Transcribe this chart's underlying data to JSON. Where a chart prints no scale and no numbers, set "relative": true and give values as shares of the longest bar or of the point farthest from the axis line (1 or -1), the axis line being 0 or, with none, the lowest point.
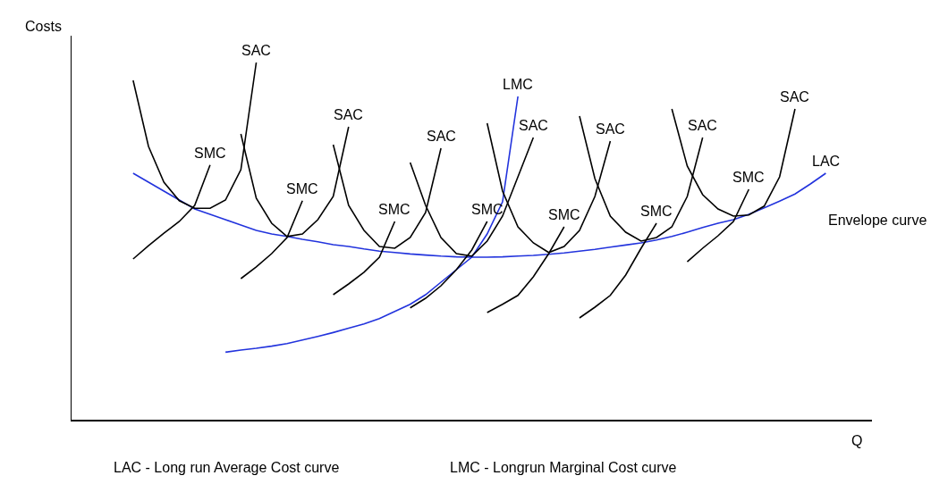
{
  "chart_data": {
    "type": "line",
    "relative": true,
    "xlabel": "Q",
    "ylabel": "Costs",
    "grid": false,
    "legend": false,
    "marker": "none",
    "line_style": "solid",
    "categories": [
      null,
      null,
      null,
      null,
      null,
      null,
      null,
      null,
      null,
      null,
      null,
      null,
      null,
      null,
      null,
      null,
      null,
      null,
      null,
      null,
      null,
      null,
      null,
      null,
      null,
      null,
      null,
      null,
      null,
      null,
      null,
      null,
      null,
      null,
      null,
      null,
      null,
      null,
      null,
      null,
      null,
      null,
      null,
      null,
      null,
      null,
      null,
      null
    ],
    "series": [
      {
        "name": "LAC",
        "color": "#2233dd",
        "values": [
          null,
          0.69,
          0.665,
          0.64,
          0.615,
          0.59,
          0.575,
          0.56,
          0.545,
          0.53,
          0.52,
          0.513,
          0.505,
          0.498,
          0.49,
          0.485,
          0.478,
          0.472,
          0.468,
          0.464,
          0.461,
          0.458,
          0.456,
          0.455,
          0.455,
          0.456,
          0.458,
          0.46,
          0.463,
          0.467,
          0.472,
          0.477,
          0.483,
          0.489,
          0.495,
          0.503,
          0.513,
          0.525,
          0.538,
          0.55,
          0.56,
          0.575,
          0.593,
          0.612,
          0.632,
          0.66,
          0.69,
          null
        ]
      },
      {
        "name": "LMC",
        "color": "#2233dd",
        "values": [
          null,
          null,
          null,
          null,
          null,
          null,
          null,
          0.189,
          0.195,
          0.2,
          0.206,
          0.213,
          0.223,
          0.233,
          0.244,
          0.256,
          0.268,
          0.283,
          0.303,
          0.323,
          0.35,
          0.385,
          0.42,
          0.455,
          0.52,
          0.61,
          0.905,
          null,
          null,
          null,
          null,
          null,
          null,
          null,
          null,
          null,
          null,
          null,
          null,
          null,
          null,
          null,
          null,
          null,
          null,
          null,
          null,
          null
        ]
      },
      {
        "name": "SAC",
        "color": "#000000",
        "values": [
          null,
          0.95,
          0.765,
          0.665,
          0.613,
          0.592,
          0.592,
          0.615,
          0.7,
          1,
          null,
          null,
          null,
          null,
          null,
          null,
          null,
          null,
          null,
          null,
          null,
          null,
          null,
          null,
          null,
          null,
          null,
          null,
          null,
          null,
          null,
          null,
          null,
          null,
          null,
          null,
          null,
          null,
          null,
          null,
          null,
          null,
          null,
          null,
          null,
          null,
          null,
          null
        ]
      },
      {
        "name": "SAC",
        "color": "#000000",
        "values": [
          null,
          null,
          null,
          null,
          null,
          null,
          null,
          null,
          0.8,
          0.62,
          0.55,
          0.513,
          0.52,
          0.56,
          0.625,
          0.82,
          null,
          null,
          null,
          null,
          null,
          null,
          null,
          null,
          null,
          null,
          null,
          null,
          null,
          null,
          null,
          null,
          null,
          null,
          null,
          null,
          null,
          null,
          null,
          null,
          null,
          null,
          null,
          null,
          null,
          null,
          null,
          null
        ]
      },
      {
        "name": "SAC",
        "color": "#000000",
        "values": [
          null,
          null,
          null,
          null,
          null,
          null,
          null,
          null,
          null,
          null,
          null,
          null,
          null,
          null,
          0.77,
          0.6,
          0.53,
          0.485,
          0.48,
          0.51,
          0.58,
          0.76,
          null,
          null,
          null,
          null,
          null,
          null,
          null,
          null,
          null,
          null,
          null,
          null,
          null,
          null,
          null,
          null,
          null,
          null,
          null,
          null,
          null,
          null,
          null,
          null,
          null,
          null
        ]
      },
      {
        "name": "SAC",
        "color": "#000000",
        "values": [
          null,
          null,
          null,
          null,
          null,
          null,
          null,
          null,
          null,
          null,
          null,
          null,
          null,
          null,
          null,
          null,
          null,
          null,
          null,
          0.72,
          0.6,
          0.51,
          0.465,
          0.458,
          0.5,
          0.57,
          0.68,
          0.79,
          null,
          null,
          null,
          null,
          null,
          null,
          null,
          null,
          null,
          null,
          null,
          null,
          null,
          null,
          null,
          null,
          null,
          null,
          null,
          null
        ]
      },
      {
        "name": "SAC",
        "color": "#000000",
        "values": [
          null,
          null,
          null,
          null,
          null,
          null,
          null,
          null,
          null,
          null,
          null,
          null,
          null,
          null,
          null,
          null,
          null,
          null,
          null,
          null,
          null,
          null,
          null,
          null,
          0.83,
          0.64,
          0.54,
          0.495,
          0.468,
          0.485,
          0.53,
          0.625,
          0.78,
          null,
          null,
          null,
          null,
          null,
          null,
          null,
          null,
          null,
          null,
          null,
          null,
          null,
          null,
          null
        ]
      },
      {
        "name": "SAC",
        "color": "#000000",
        "values": [
          null,
          null,
          null,
          null,
          null,
          null,
          null,
          null,
          null,
          null,
          null,
          null,
          null,
          null,
          null,
          null,
          null,
          null,
          null,
          null,
          null,
          null,
          null,
          null,
          null,
          null,
          null,
          null,
          null,
          null,
          0.85,
          0.675,
          0.57,
          0.525,
          0.5,
          0.51,
          0.54,
          0.625,
          0.79,
          null,
          null,
          null,
          null,
          null,
          null,
          null,
          null,
          null
        ]
      },
      {
        "name": "SAC",
        "color": "#000000",
        "values": [
          null,
          null,
          null,
          null,
          null,
          null,
          null,
          null,
          null,
          null,
          null,
          null,
          null,
          null,
          null,
          null,
          null,
          null,
          null,
          null,
          null,
          null,
          null,
          null,
          null,
          null,
          null,
          null,
          null,
          null,
          null,
          null,
          null,
          null,
          null,
          null,
          0.87,
          0.71,
          0.63,
          0.59,
          0.57,
          0.573,
          0.598,
          0.68,
          0.87,
          null,
          null,
          null
        ]
      },
      {
        "name": "SMC",
        "color": "#000000",
        "values": [
          null,
          0.45,
          0.487,
          0.522,
          0.555,
          0.6,
          0.713,
          null,
          null,
          null,
          null,
          null,
          null,
          null,
          null,
          null,
          null,
          null,
          null,
          null,
          null,
          null,
          null,
          null,
          null,
          null,
          null,
          null,
          null,
          null,
          null,
          null,
          null,
          null,
          null,
          null,
          null,
          null,
          null,
          null,
          null,
          null,
          null,
          null,
          null,
          null,
          null,
          null
        ]
      },
      {
        "name": "SMC",
        "color": "#000000",
        "values": [
          null,
          null,
          null,
          null,
          null,
          null,
          null,
          null,
          0.395,
          0.428,
          0.465,
          0.51,
          0.613,
          null,
          null,
          null,
          null,
          null,
          null,
          null,
          null,
          null,
          null,
          null,
          null,
          null,
          null,
          null,
          null,
          null,
          null,
          null,
          null,
          null,
          null,
          null,
          null,
          null,
          null,
          null,
          null,
          null,
          null,
          null,
          null,
          null,
          null,
          null
        ]
      },
      {
        "name": "SMC",
        "color": "#000000",
        "values": [
          null,
          null,
          null,
          null,
          null,
          null,
          null,
          null,
          null,
          null,
          null,
          null,
          null,
          null,
          0.35,
          0.38,
          0.413,
          0.455,
          0.555,
          null,
          null,
          null,
          null,
          null,
          null,
          null,
          null,
          null,
          null,
          null,
          null,
          null,
          null,
          null,
          null,
          null,
          null,
          null,
          null,
          null,
          null,
          null,
          null,
          null,
          null,
          null,
          null,
          null
        ]
      },
      {
        "name": "SMC",
        "color": "#000000",
        "values": [
          null,
          null,
          null,
          null,
          null,
          null,
          null,
          null,
          null,
          null,
          null,
          null,
          null,
          null,
          null,
          null,
          null,
          null,
          null,
          0.313,
          0.34,
          0.375,
          0.42,
          0.475,
          0.555,
          null,
          null,
          null,
          null,
          null,
          null,
          null,
          null,
          null,
          null,
          null,
          null,
          null,
          null,
          null,
          null,
          null,
          null,
          null,
          null,
          null,
          null,
          null
        ]
      },
      {
        "name": "SMC",
        "color": "#000000",
        "values": [
          null,
          null,
          null,
          null,
          null,
          null,
          null,
          null,
          null,
          null,
          null,
          null,
          null,
          null,
          null,
          null,
          null,
          null,
          null,
          null,
          null,
          null,
          null,
          null,
          0.3,
          0.323,
          0.348,
          0.4,
          0.465,
          0.54,
          null,
          null,
          null,
          null,
          null,
          null,
          null,
          null,
          null,
          null,
          null,
          null,
          null,
          null,
          null,
          null,
          null,
          null
        ]
      },
      {
        "name": "SMC",
        "color": "#000000",
        "values": [
          null,
          null,
          null,
          null,
          null,
          null,
          null,
          null,
          null,
          null,
          null,
          null,
          null,
          null,
          null,
          null,
          null,
          null,
          null,
          null,
          null,
          null,
          null,
          null,
          null,
          null,
          null,
          null,
          null,
          null,
          0.285,
          0.315,
          0.348,
          0.405,
          0.48,
          0.55,
          null,
          null,
          null,
          null,
          null,
          null,
          null,
          null,
          null,
          null,
          null,
          null
        ]
      },
      {
        "name": "SMC",
        "color": "#000000",
        "values": [
          null,
          null,
          null,
          null,
          null,
          null,
          null,
          null,
          null,
          null,
          null,
          null,
          null,
          null,
          null,
          null,
          null,
          null,
          null,
          null,
          null,
          null,
          null,
          null,
          null,
          null,
          null,
          null,
          null,
          null,
          null,
          null,
          null,
          null,
          null,
          null,
          null,
          0.442,
          0.48,
          0.515,
          0.555,
          0.645,
          null,
          null,
          null,
          null,
          null,
          null
        ]
      }
    ],
    "annotations": [
      "Envelope curve",
      "LAC - Long run Average Cost curve",
      "LMC - Longrun Marginal Cost curve"
    ]
  }
}
